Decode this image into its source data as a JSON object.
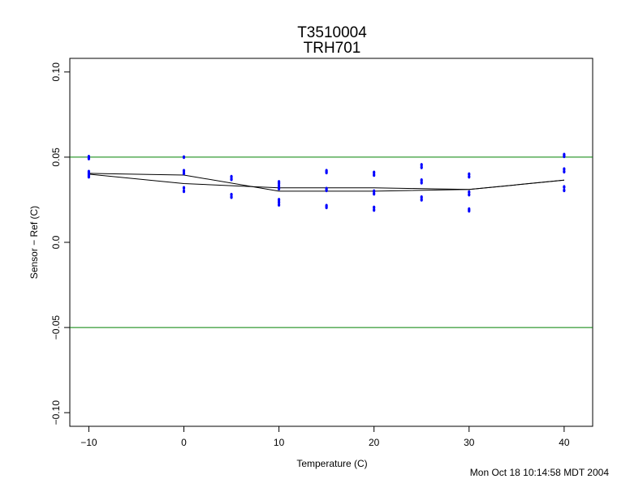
{
  "chart_data": {
    "type": "scatter",
    "title": "T3510004",
    "subtitle": "TRH701",
    "xlabel": "Temperature (C)",
    "ylabel": "Sensor − Ref (C)",
    "xlim": [
      -12,
      43
    ],
    "ylim": [
      -0.108,
      0.108
    ],
    "xticks": [
      -10,
      0,
      10,
      20,
      30,
      40
    ],
    "xtick_labels": [
      "−10",
      "0",
      "10",
      "20",
      "30",
      "40"
    ],
    "yticks": [
      -0.1,
      -0.05,
      0.0,
      0.05,
      0.1
    ],
    "ytick_labels": [
      "−0.10",
      "−0.05",
      "0.0",
      "0.05",
      "0.10"
    ],
    "grid": false,
    "reference_lines": {
      "values": [
        0.05,
        -0.05
      ],
      "color": "#008000"
    },
    "point_color": "#0000ff",
    "points": [
      {
        "x": -10,
        "y": 0.0503
      },
      {
        "x": -10,
        "y": 0.0492
      },
      {
        "x": -10,
        "y": 0.0415
      },
      {
        "x": -10,
        "y": 0.0405
      },
      {
        "x": -10,
        "y": 0.0395
      },
      {
        "x": -10,
        "y": 0.0385
      },
      {
        "x": 0,
        "y": 0.05
      },
      {
        "x": 0,
        "y": 0.042
      },
      {
        "x": 0,
        "y": 0.0405
      },
      {
        "x": 0,
        "y": 0.032
      },
      {
        "x": 0,
        "y": 0.03
      },
      {
        "x": 5,
        "y": 0.0385
      },
      {
        "x": 5,
        "y": 0.037
      },
      {
        "x": 5,
        "y": 0.028
      },
      {
        "x": 5,
        "y": 0.0265
      },
      {
        "x": 10,
        "y": 0.0355
      },
      {
        "x": 10,
        "y": 0.0345
      },
      {
        "x": 10,
        "y": 0.033
      },
      {
        "x": 10,
        "y": 0.0315
      },
      {
        "x": 10,
        "y": 0.025
      },
      {
        "x": 10,
        "y": 0.0235
      },
      {
        "x": 10,
        "y": 0.022
      },
      {
        "x": 15,
        "y": 0.042
      },
      {
        "x": 15,
        "y": 0.041
      },
      {
        "x": 15,
        "y": 0.0315
      },
      {
        "x": 15,
        "y": 0.0305
      },
      {
        "x": 15,
        "y": 0.0215
      },
      {
        "x": 15,
        "y": 0.0205
      },
      {
        "x": 20,
        "y": 0.041
      },
      {
        "x": 20,
        "y": 0.0395
      },
      {
        "x": 20,
        "y": 0.03
      },
      {
        "x": 20,
        "y": 0.0285
      },
      {
        "x": 20,
        "y": 0.0205
      },
      {
        "x": 20,
        "y": 0.019
      },
      {
        "x": 25,
        "y": 0.0455
      },
      {
        "x": 25,
        "y": 0.044
      },
      {
        "x": 25,
        "y": 0.0365
      },
      {
        "x": 25,
        "y": 0.035
      },
      {
        "x": 25,
        "y": 0.0265
      },
      {
        "x": 25,
        "y": 0.025
      },
      {
        "x": 30,
        "y": 0.04
      },
      {
        "x": 30,
        "y": 0.0385
      },
      {
        "x": 30,
        "y": 0.0295
      },
      {
        "x": 30,
        "y": 0.028
      },
      {
        "x": 30,
        "y": 0.0195
      },
      {
        "x": 30,
        "y": 0.0185
      },
      {
        "x": 40,
        "y": 0.0515
      },
      {
        "x": 40,
        "y": 0.0505
      },
      {
        "x": 40,
        "y": 0.043
      },
      {
        "x": 40,
        "y": 0.0415
      },
      {
        "x": 40,
        "y": 0.0325
      },
      {
        "x": 40,
        "y": 0.0305
      }
    ],
    "series": [
      {
        "x": [
          -10,
          0,
          10,
          20,
          30,
          40
        ],
        "y": [
          0.0405,
          0.0395,
          0.03,
          0.03,
          0.031,
          0.0365
        ]
      },
      {
        "x": [
          -10,
          0,
          10,
          20,
          30,
          40
        ],
        "y": [
          0.04,
          0.0345,
          0.032,
          0.032,
          0.031,
          0.0365
        ]
      }
    ]
  },
  "footer": {
    "timestamp": "Mon Oct 18 10:14:58 MDT 2004"
  }
}
